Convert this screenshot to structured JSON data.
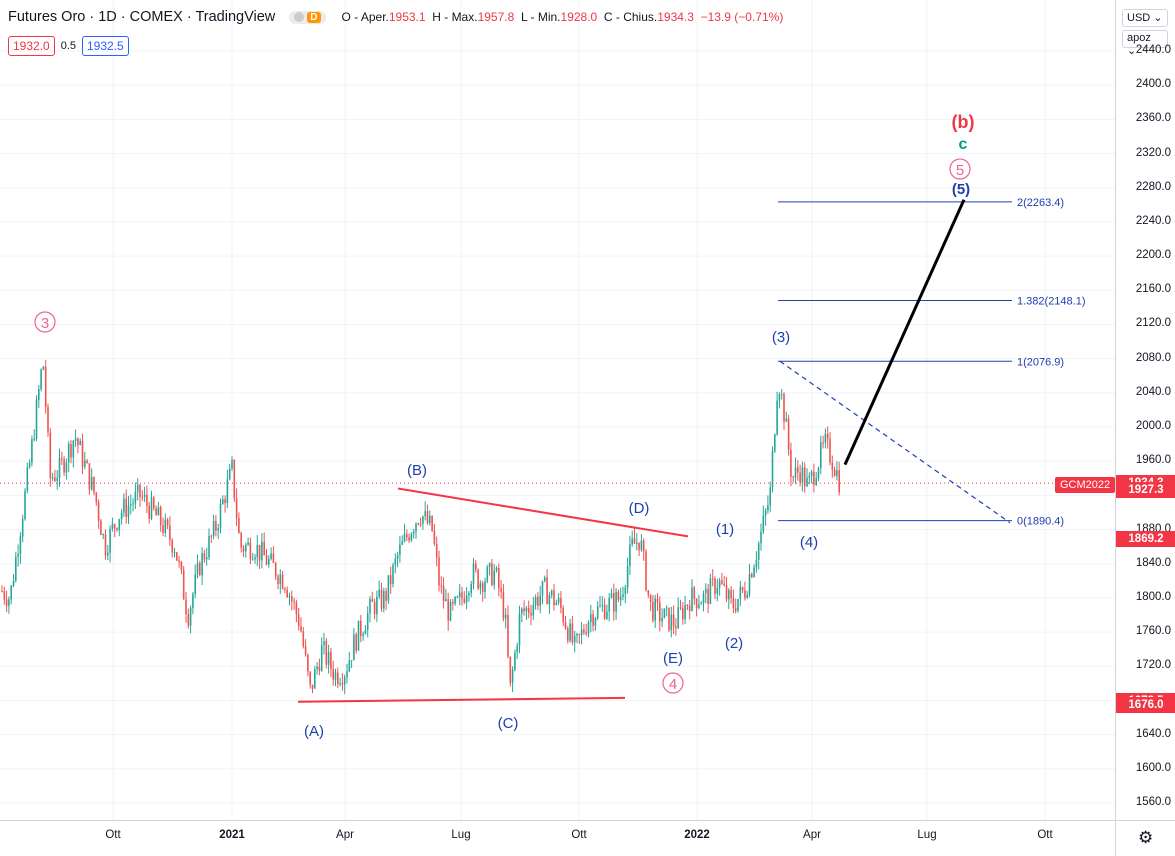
{
  "legend": {
    "title": "Futures Oro · 1D · COMEX · TradingView",
    "pill_letter": "D",
    "ohlc_open_label": "O - Aper.",
    "ohlc_open": "1953.1",
    "ohlc_high_label": "H - Max.",
    "ohlc_high": "1957.8",
    "ohlc_low_label": "L - Min.",
    "ohlc_low": "1928.0",
    "ohlc_close_label": "C - Chius.",
    "ohlc_close": "1934.3",
    "ohlc_change": "−13.9 (−0.71%)",
    "bid": "1932.0",
    "spread": "0.5",
    "ask": "1932.5"
  },
  "price_axis": {
    "currency": "USD ⌄",
    "unit": "apoz ⌄",
    "ticks": [
      "2440.0",
      "2400.0",
      "2360.0",
      "2320.0",
      "2280.0",
      "2240.0",
      "2200.0",
      "2160.0",
      "2120.0",
      "2080.0",
      "2040.0",
      "2000.0",
      "1960.0",
      "1920.0",
      "1880.0",
      "1840.0",
      "1800.0",
      "1760.0",
      "1720.0",
      "1680.0",
      "1640.0",
      "1600.0",
      "1560.0"
    ],
    "tags": [
      {
        "text": "1934.3",
        "color": "#f23645",
        "price": 1934.3
      },
      {
        "text": "1927.3",
        "color": "#f23645",
        "price": 1927.3
      },
      {
        "text": "1869.2",
        "color": "#f23645",
        "price": 1869.2
      },
      {
        "text": "1678.5",
        "color": "#f23645",
        "price": 1678.5
      },
      {
        "text": "1676.0",
        "color": "#f23645",
        "price": 1676.0
      }
    ],
    "symbol_tag": "GCM2022"
  },
  "time_axis": {
    "labels": [
      {
        "text": "Ott",
        "bold": false
      },
      {
        "text": "2021",
        "bold": true
      },
      {
        "text": "Apr",
        "bold": false
      },
      {
        "text": "Lug",
        "bold": false
      },
      {
        "text": "Ott",
        "bold": false
      },
      {
        "text": "2022",
        "bold": true
      },
      {
        "text": "Apr",
        "bold": false
      },
      {
        "text": "Lug",
        "bold": false
      },
      {
        "text": "Ott",
        "bold": false
      }
    ]
  },
  "fib_levels": [
    {
      "label": "2(2263.4)",
      "price": 2263.4
    },
    {
      "label": "1.382(2148.1)",
      "price": 2148.1
    },
    {
      "label": "1(2076.9)",
      "price": 2076.9
    },
    {
      "label": "0(1890.4)",
      "price": 1890.4
    }
  ],
  "wave_labels": [
    {
      "text": "(b)",
      "color": "#f23645"
    },
    {
      "text": "c",
      "color": "#089981"
    },
    {
      "text": "5",
      "color": "#f06292",
      "circled": true
    },
    {
      "text": "(5)",
      "color": "#1e40af"
    },
    {
      "text": "3",
      "color": "#f06292",
      "circled": true
    },
    {
      "text": "(3)",
      "color": "#1e40af"
    },
    {
      "text": "(B)",
      "color": "#1e40af"
    },
    {
      "text": "(D)",
      "color": "#1e40af"
    },
    {
      "text": "(1)",
      "color": "#1e40af"
    },
    {
      "text": "(4)",
      "color": "#1e40af"
    },
    {
      "text": "(2)",
      "color": "#1e40af"
    },
    {
      "text": "(E)",
      "color": "#1e40af"
    },
    {
      "text": "4",
      "color": "#f06292",
      "circled": true
    },
    {
      "text": "(A)",
      "color": "#1e40af"
    },
    {
      "text": "(C)",
      "color": "#1e40af"
    }
  ],
  "colors": {
    "up": "#26a69a",
    "down": "#ef5350",
    "fib": "#1e40af",
    "trendline": "#f23645",
    "projection": "#000000",
    "grid": "#f0f3fa"
  }
}
